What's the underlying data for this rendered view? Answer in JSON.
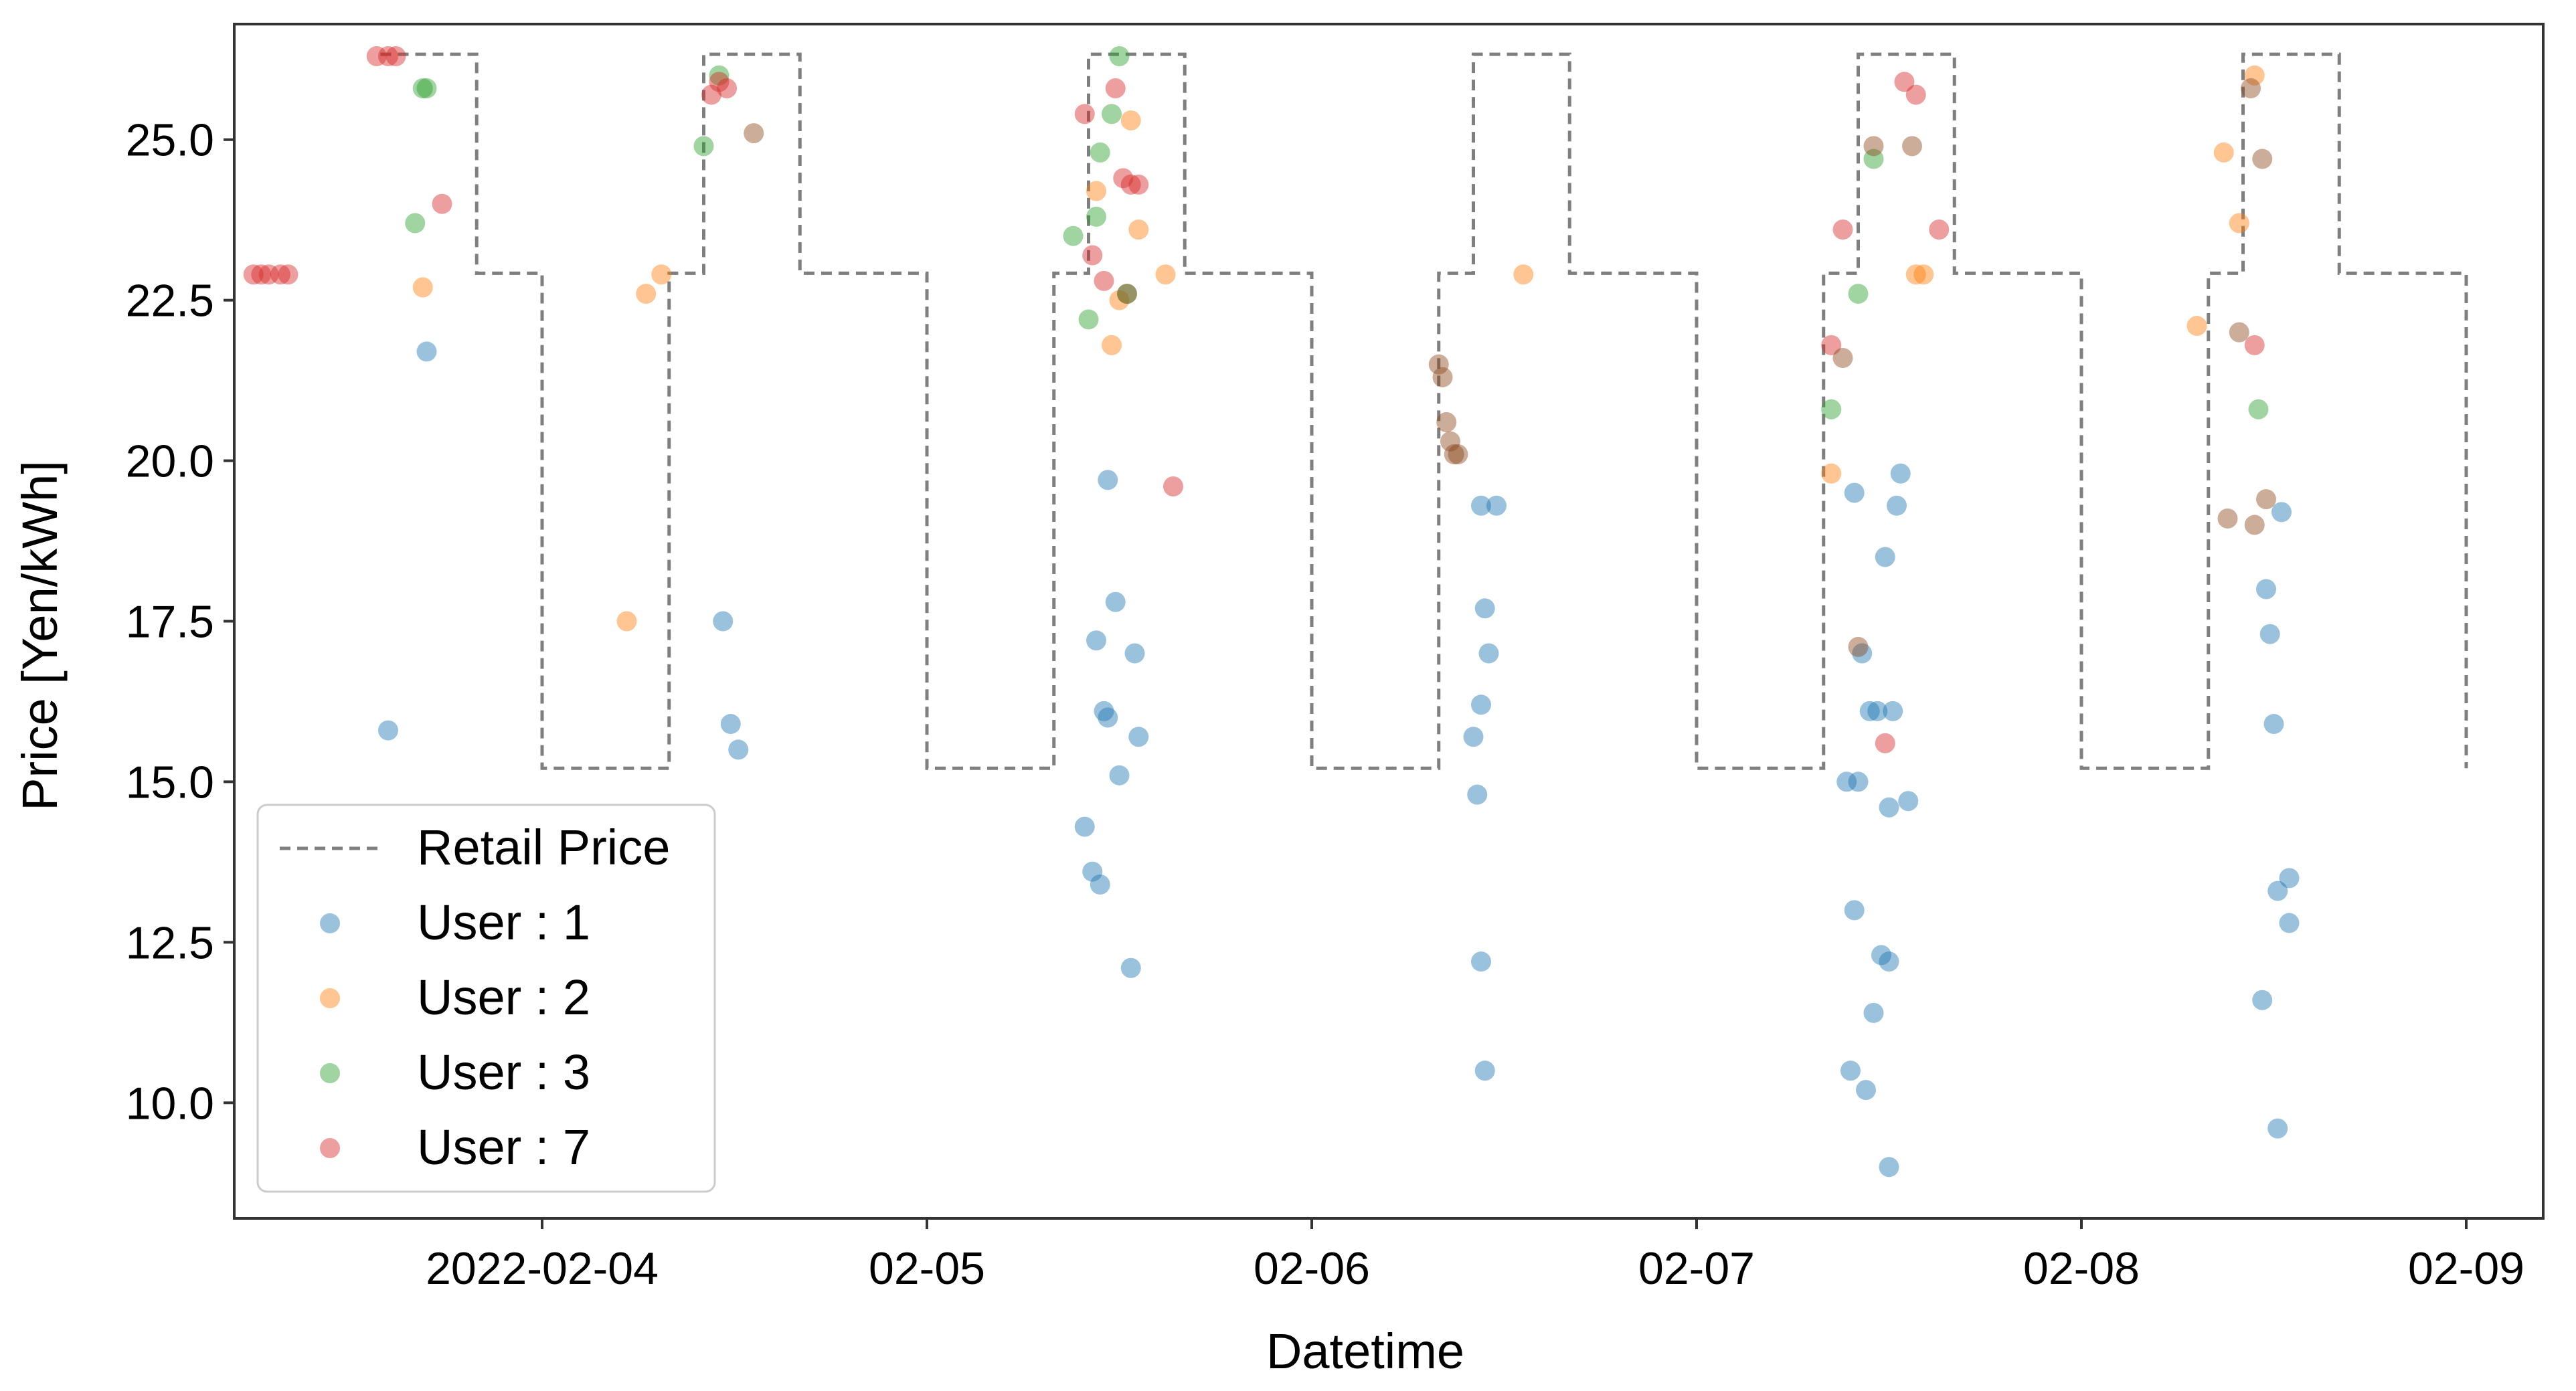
{
  "chart_data": {
    "type": "scatter",
    "title": "",
    "xlabel": "Datetime",
    "ylabel": "Price [Yen/kWh]",
    "x_unit": "days since 2022-02-03 00:00",
    "xlim": [
      0.2,
      6.2
    ],
    "ylim": [
      8.2,
      26.8
    ],
    "y_ticks": [
      10.0,
      12.5,
      15.0,
      17.5,
      20.0,
      22.5,
      25.0
    ],
    "y_tick_labels": [
      "10.0",
      "12.5",
      "15.0",
      "17.5",
      "20.0",
      "22.5",
      "25.0"
    ],
    "x_ticks": [
      1,
      2,
      3,
      4,
      5,
      6
    ],
    "x_tick_labels": [
      "2022-02-04",
      "02-05",
      "02-06",
      "02-07",
      "02-08",
      "02-09"
    ],
    "grid": false,
    "legend_position": "bottom-left",
    "retail_price": {
      "name": "Retail Price",
      "color": "#7f7f7f",
      "style": "dashed",
      "steps": [
        {
          "x": 0.58,
          "y": 26.33
        },
        {
          "x": 0.83,
          "y": 22.92
        },
        {
          "x": 1.0,
          "y": 15.21
        },
        {
          "x": 1.33,
          "y": 22.92
        },
        {
          "x": 1.42,
          "y": 26.33
        },
        {
          "x": 1.67,
          "y": 22.92
        },
        {
          "x": 2.0,
          "y": 15.21
        },
        {
          "x": 2.33,
          "y": 22.92
        },
        {
          "x": 2.42,
          "y": 26.33
        },
        {
          "x": 2.67,
          "y": 22.92
        },
        {
          "x": 3.0,
          "y": 15.21
        },
        {
          "x": 3.33,
          "y": 22.92
        },
        {
          "x": 3.42,
          "y": 26.33
        },
        {
          "x": 3.67,
          "y": 22.92
        },
        {
          "x": 4.0,
          "y": 15.21
        },
        {
          "x": 4.33,
          "y": 22.92
        },
        {
          "x": 4.42,
          "y": 26.33
        },
        {
          "x": 4.67,
          "y": 22.92
        },
        {
          "x": 5.0,
          "y": 15.21
        },
        {
          "x": 5.33,
          "y": 22.92
        },
        {
          "x": 5.42,
          "y": 26.33
        },
        {
          "x": 5.67,
          "y": 22.92
        },
        {
          "x": 6.0,
          "y": 15.21
        }
      ],
      "end_x": 6.0
    },
    "series": [
      {
        "name": "User : 1",
        "color": "#1f77b4",
        "x": [
          0.6,
          0.7,
          1.47,
          1.49,
          1.51,
          2.41,
          2.43,
          2.44,
          2.45,
          2.46,
          2.47,
          2.47,
          2.49,
          2.5,
          2.53,
          2.54,
          2.55,
          3.42,
          3.43,
          3.44,
          3.44,
          3.44,
          3.45,
          3.45,
          3.46,
          3.48,
          4.39,
          4.4,
          4.41,
          4.41,
          4.42,
          4.43,
          4.44,
          4.45,
          4.46,
          4.47,
          4.48,
          4.49,
          4.5,
          4.5,
          4.5,
          4.51,
          4.52,
          4.53,
          4.55,
          5.47,
          5.48,
          5.49,
          5.5,
          5.51,
          5.51,
          5.52,
          5.54,
          5.54
        ],
        "y": [
          15.8,
          21.7,
          17.5,
          15.9,
          15.5,
          14.3,
          13.6,
          17.2,
          13.4,
          16.1,
          19.7,
          16.0,
          17.8,
          15.1,
          12.1,
          17.0,
          15.7,
          15.7,
          14.8,
          16.2,
          12.2,
          19.3,
          10.5,
          17.7,
          17.0,
          19.3,
          15.0,
          10.5,
          13.0,
          19.5,
          15.0,
          17.0,
          10.2,
          16.1,
          11.4,
          16.1,
          12.3,
          18.5,
          14.6,
          9.0,
          12.2,
          16.1,
          19.3,
          19.8,
          14.7,
          11.6,
          18.0,
          17.3,
          15.9,
          9.6,
          13.3,
          19.2,
          12.8,
          13.5
        ]
      },
      {
        "name": "User : 2",
        "color": "#ff7f0e",
        "x": [
          0.69,
          1.22,
          1.27,
          1.31,
          2.44,
          2.48,
          2.5,
          2.53,
          2.55,
          2.62,
          3.55,
          4.35,
          4.57,
          4.59,
          5.3,
          5.37,
          5.41,
          5.45
        ],
        "y": [
          22.7,
          17.5,
          22.6,
          22.9,
          24.2,
          21.8,
          22.5,
          25.3,
          23.6,
          22.9,
          22.9,
          19.8,
          22.9,
          22.9,
          22.1,
          24.8,
          23.7,
          26.0
        ]
      },
      {
        "name": "User : 3",
        "color": "#2ca02c",
        "x": [
          0.67,
          0.69,
          0.7,
          1.42,
          1.46,
          2.38,
          2.42,
          2.44,
          2.45,
          2.48,
          2.5,
          2.52,
          4.35,
          4.42,
          4.46,
          5.46
        ],
        "y": [
          23.7,
          25.8,
          25.8,
          24.9,
          26.0,
          23.5,
          22.2,
          23.8,
          24.8,
          25.4,
          26.3,
          22.6,
          20.8,
          22.6,
          24.7,
          20.8
        ]
      },
      {
        "name": "User : 7",
        "color": "#d62728",
        "x": [
          0.25,
          0.27,
          0.29,
          0.32,
          0.34,
          0.57,
          0.6,
          0.62,
          0.74,
          1.44,
          1.46,
          1.48,
          2.41,
          2.43,
          2.46,
          2.49,
          2.51,
          2.53,
          2.55,
          2.64,
          4.35,
          4.38,
          4.49,
          4.54,
          4.57,
          4.63,
          5.45
        ],
        "y": [
          22.9,
          22.9,
          22.9,
          22.9,
          22.9,
          26.3,
          26.3,
          26.3,
          24.0,
          25.7,
          25.9,
          25.8,
          25.4,
          23.2,
          22.8,
          25.8,
          24.4,
          24.3,
          24.3,
          19.6,
          21.8,
          23.6,
          15.6,
          25.9,
          25.7,
          23.6,
          21.8
        ]
      },
      {
        "name": "",
        "color": "#8c4a1e",
        "x": [
          1.55,
          2.52,
          3.33,
          3.34,
          3.35,
          3.36,
          3.37,
          3.38,
          4.38,
          4.42,
          4.46,
          4.56,
          5.38,
          5.41,
          5.44,
          5.45,
          5.47,
          5.48
        ],
        "y": [
          25.1,
          22.6,
          21.5,
          21.3,
          20.6,
          20.3,
          20.1,
          20.1,
          21.6,
          17.1,
          24.9,
          24.9,
          19.1,
          22.0,
          25.8,
          19.0,
          24.7,
          19.4
        ]
      }
    ]
  },
  "legend": {
    "retail": "Retail Price",
    "items": [
      {
        "label": "User : 1",
        "color": "#1f77b4"
      },
      {
        "label": "User : 2",
        "color": "#ff7f0e"
      },
      {
        "label": "User : 3",
        "color": "#2ca02c"
      },
      {
        "label": "User : 7",
        "color": "#d62728"
      }
    ]
  }
}
